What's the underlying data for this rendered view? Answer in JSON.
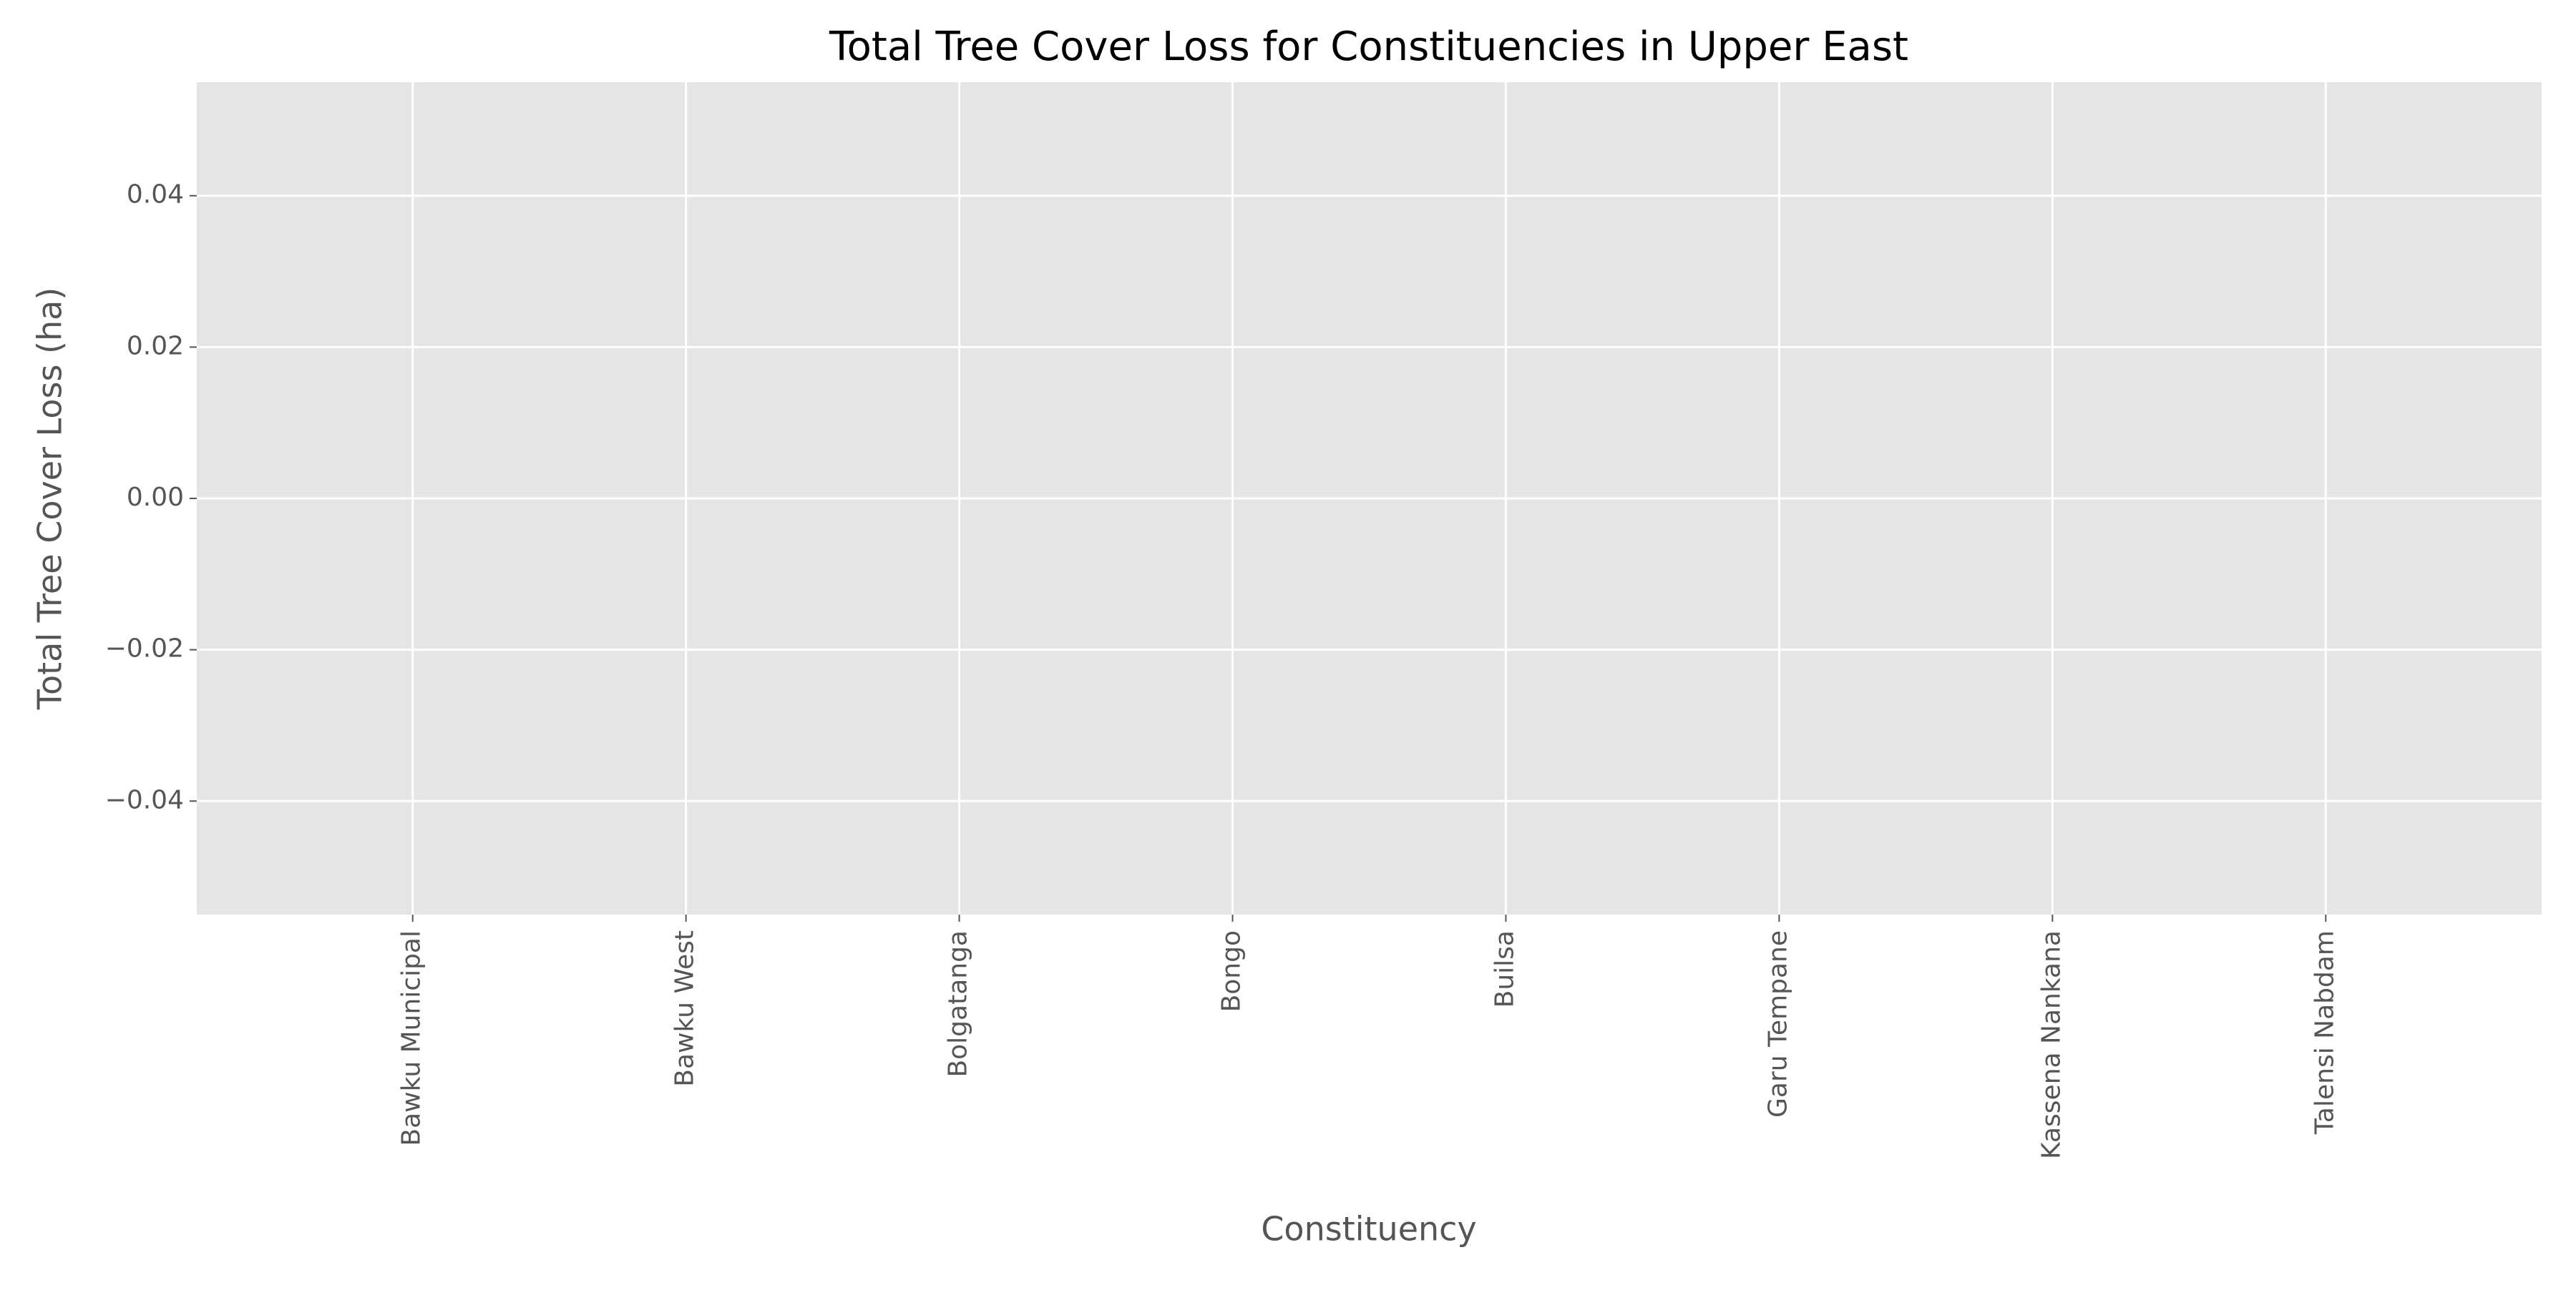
{
  "chart_data": {
    "type": "bar",
    "title": "Total Tree Cover Loss for Constituencies in Upper East",
    "x_label": "Constituency",
    "y_label": "Total Tree Cover Loss (ha)",
    "categories": [
      "Bawku Municipal",
      "Bawku West",
      "Bolgatanga",
      "Bongo",
      "Builsa",
      "Garu Tempane",
      "Kassena Nankana",
      "Talensi Nabdam"
    ],
    "values": [
      0,
      0,
      0,
      0,
      0,
      0,
      0,
      0
    ],
    "color": "#E24A33",
    "ylim": [
      -0.055,
      0.055
    ],
    "yticks": [
      {
        "value": -0.04,
        "label": "−0.04"
      },
      {
        "value": -0.02,
        "label": "−0.02"
      },
      {
        "value": 0,
        "label": "0.00"
      },
      0.02,
      0.04
    ],
    "grid": true
  }
}
